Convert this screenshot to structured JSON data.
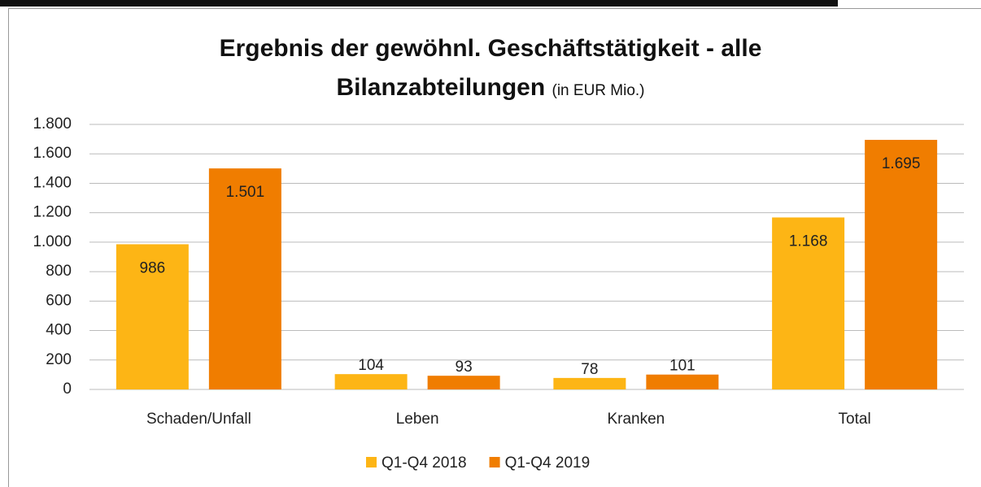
{
  "chart_data": {
    "type": "bar",
    "title": "Ergebnis der gewöhnl. Geschäftstätigkeit - alle Bilanzabteilungen",
    "subtitle": "(in EUR Mio.)",
    "categories": [
      "Schaden/Unfall",
      "Leben",
      "Kranken",
      "Total"
    ],
    "series": [
      {
        "name": "Q1-Q4 2018",
        "color": "#fdb515",
        "values": [
          986,
          104,
          78,
          1168
        ],
        "value_labels": [
          "986",
          "104",
          "78",
          "1.168"
        ]
      },
      {
        "name": "Q1-Q4 2019",
        "color": "#f07d00",
        "values": [
          1501,
          93,
          101,
          1695
        ],
        "value_labels": [
          "1.501",
          "93",
          "101",
          "1.695"
        ]
      }
    ],
    "ylim": [
      0,
      1800
    ],
    "yticks": [
      0,
      200,
      400,
      600,
      800,
      {
        "value": 1000,
        "label": "1.000"
      },
      {
        "value": 1200,
        "label": "1.200"
      },
      {
        "value": 1400,
        "label": "1.400"
      },
      {
        "value": 1600,
        "label": "1.600"
      },
      {
        "value": 1800,
        "label": "1.800"
      }
    ],
    "grid": true,
    "legend": "bottom"
  }
}
